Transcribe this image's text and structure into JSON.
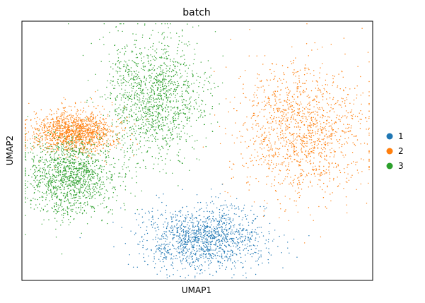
{
  "chart_data": {
    "type": "scatter",
    "title": "batch",
    "xlabel": "UMAP1",
    "ylabel": "UMAP2",
    "ticks": "none",
    "grid": false,
    "legend_position": "right",
    "series": [
      {
        "name": "1",
        "color": "#1f77b4"
      },
      {
        "name": "2",
        "color": "#ff7f0e"
      },
      {
        "name": "3",
        "color": "#2ca02c"
      }
    ],
    "clusters": [
      {
        "series": "2",
        "label": "large right cluster",
        "center": [
          0.8,
          0.57
        ],
        "spread": [
          0.18,
          0.26
        ]
      },
      {
        "series": "3",
        "label": "upper center cluster",
        "center": [
          0.38,
          0.71
        ],
        "spread": [
          0.14,
          0.23
        ]
      },
      {
        "series": "1",
        "label": "lower center cluster",
        "center": [
          0.52,
          0.16
        ],
        "spread": [
          0.17,
          0.12
        ]
      },
      {
        "series": "2",
        "label": "left arc",
        "center": [
          0.15,
          0.57
        ],
        "spread": [
          0.12,
          0.08
        ]
      },
      {
        "series": "3",
        "label": "far left arc",
        "center": [
          0.14,
          0.4
        ],
        "spread": [
          0.13,
          0.15
        ]
      }
    ]
  }
}
